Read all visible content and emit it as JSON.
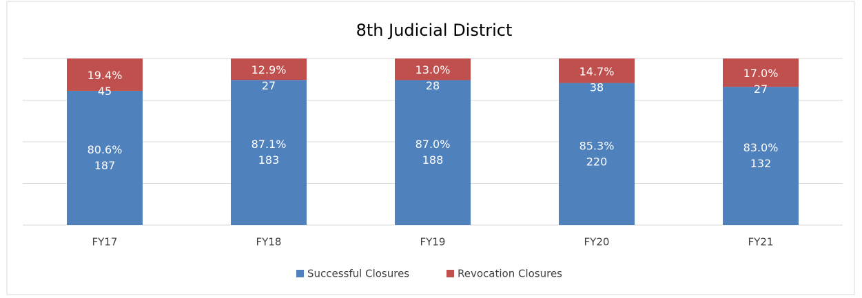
{
  "chart_data": {
    "type": "stacked_bar_100",
    "title": "8th Judicial District",
    "categories": [
      "FY17",
      "FY18",
      "FY19",
      "FY20",
      "FY21"
    ],
    "series": [
      {
        "name": "Successful Closures",
        "color": "#4f81bd",
        "values": [
          80.6,
          87.1,
          87.0,
          85.3,
          83.0
        ],
        "value_labels": [
          "80.6%",
          "87.1%",
          "87.0%",
          "85.3%",
          "83.0%"
        ],
        "counts": [
          187,
          183,
          188,
          220,
          132
        ]
      },
      {
        "name": "Revocation Closures",
        "color": "#c0504d",
        "values": [
          19.4,
          12.9,
          13.0,
          14.7,
          17.0
        ],
        "value_labels": [
          "19.4%",
          "12.9%",
          "13.0%",
          "14.7%",
          "17.0%"
        ],
        "counts": [
          45,
          27,
          28,
          38,
          27
        ]
      }
    ],
    "ylim": [
      0,
      100
    ],
    "yticks": [
      0,
      25,
      50,
      75,
      100
    ],
    "grid": true
  }
}
